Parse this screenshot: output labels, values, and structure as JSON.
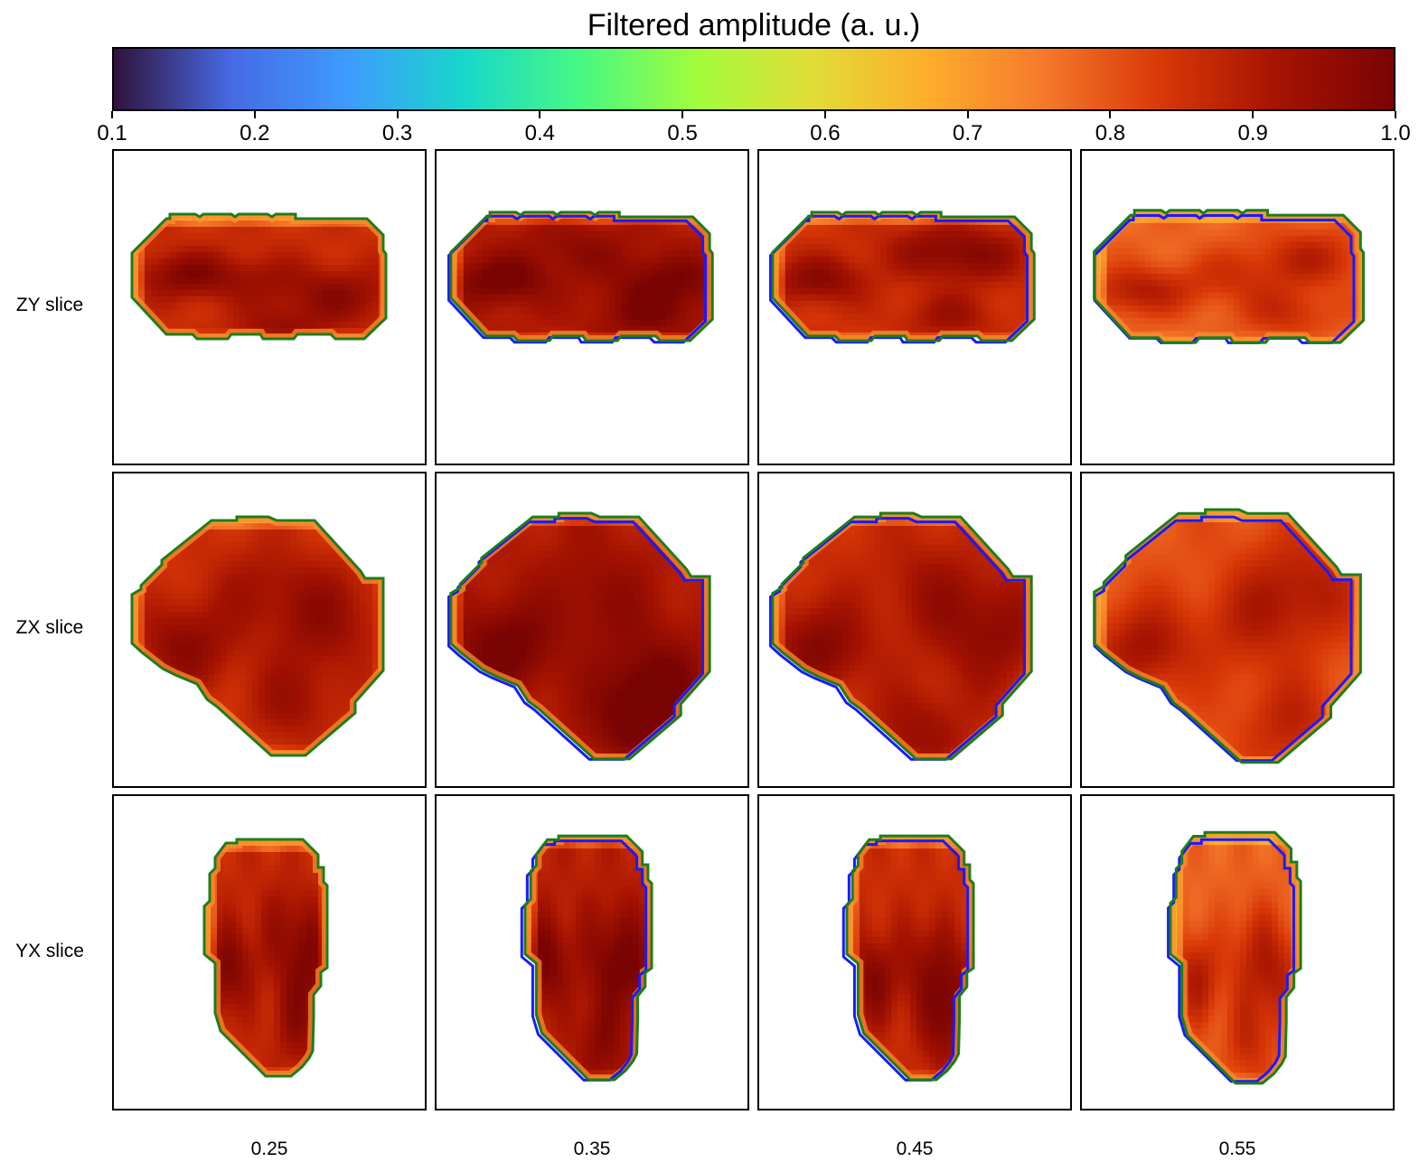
{
  "colorbar": {
    "title": "Filtered amplitude (a. u.)",
    "min": 0.1,
    "max": 1.0,
    "ticks": [
      "0.1",
      "0.2",
      "0.3",
      "0.4",
      "0.5",
      "0.6",
      "0.7",
      "0.8",
      "0.9",
      "1.0"
    ],
    "colormap": [
      "#30123b",
      "#4669e3",
      "#3e9bfe",
      "#18d6cb",
      "#46f884",
      "#a2fc3c",
      "#e1dd37",
      "#fead2b",
      "#f5792c",
      "#d93807",
      "#a51301",
      "#7a0403"
    ]
  },
  "chart_data": {
    "type": "heatmap",
    "title": "",
    "rows": [
      "ZY slice",
      "ZX slice",
      "YX slice"
    ],
    "columns": [
      "0.25",
      "0.35",
      "0.45",
      "0.55"
    ],
    "outline_colors": {
      "reference": "#1a1aff",
      "reconstruction": "#1d7d1d"
    },
    "panels": [
      {
        "row": "ZY slice",
        "column": "0.25",
        "mean_amplitude": 0.86,
        "blue_outline": false
      },
      {
        "row": "ZY slice",
        "column": "0.35",
        "mean_amplitude": 0.9,
        "blue_outline": true
      },
      {
        "row": "ZY slice",
        "column": "0.45",
        "mean_amplitude": 0.85,
        "blue_outline": true
      },
      {
        "row": "ZY slice",
        "column": "0.55",
        "mean_amplitude": 0.78,
        "blue_outline": true
      },
      {
        "row": "ZX slice",
        "column": "0.25",
        "mean_amplitude": 0.85,
        "blue_outline": false
      },
      {
        "row": "ZX slice",
        "column": "0.35",
        "mean_amplitude": 0.9,
        "blue_outline": true
      },
      {
        "row": "ZX slice",
        "column": "0.45",
        "mean_amplitude": 0.86,
        "blue_outline": true
      },
      {
        "row": "ZX slice",
        "column": "0.55",
        "mean_amplitude": 0.8,
        "blue_outline": true
      },
      {
        "row": "YX slice",
        "column": "0.25",
        "mean_amplitude": 0.87,
        "blue_outline": false
      },
      {
        "row": "YX slice",
        "column": "0.35",
        "mean_amplitude": 0.89,
        "blue_outline": true
      },
      {
        "row": "YX slice",
        "column": "0.45",
        "mean_amplitude": 0.86,
        "blue_outline": true
      },
      {
        "row": "YX slice",
        "column": "0.55",
        "mean_amplitude": 0.78,
        "blue_outline": true
      }
    ]
  }
}
